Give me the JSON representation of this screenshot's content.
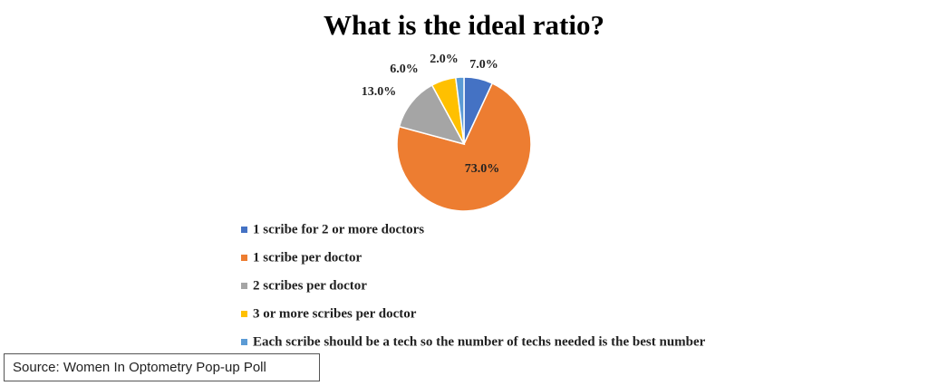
{
  "chart_data": {
    "type": "pie",
    "title": "What is the ideal ratio?",
    "categories": [
      "1 scribe for 2 or more doctors",
      "1 scribe per doctor",
      "2 scribes per doctor",
      "3 or more scribes per doctor",
      "Each scribe should be a tech so the number of techs needed is the best number"
    ],
    "values": [
      7,
      73,
      13,
      6,
      2
    ],
    "value_labels": [
      "7.0%",
      "73.0%",
      "13.0%",
      "6.0%",
      "2.0%"
    ],
    "colors": [
      "#4472c4",
      "#ed7d31",
      "#a5a5a5",
      "#ffc000",
      "#5b9bd5"
    ],
    "legend": "bottom"
  },
  "source": "Source: Women In Optometry Pop-up Poll"
}
